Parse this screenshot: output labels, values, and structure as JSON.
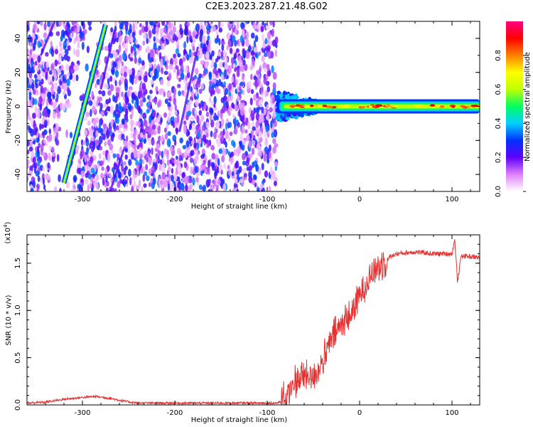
{
  "title": "C2E3.2023.287.21.48.G02",
  "chart_data": [
    {
      "type": "heatmap",
      "xlabel": "Height of straight line (km)",
      "ylabel": "Frequency (Hz)",
      "xlim": [
        -360,
        130
      ],
      "ylim": [
        -50,
        50
      ],
      "xticks": [
        -300,
        -200,
        -100,
        0,
        100
      ],
      "yticks": [
        -40,
        -20,
        0,
        20,
        40
      ],
      "colorbar": {
        "label": "Normalized spectral amplitude",
        "range": [
          0,
          1
        ],
        "ticks": [
          "0.0",
          "0.2",
          "0.4",
          "0.6",
          "0.8"
        ],
        "colors": [
          "#ffffff",
          "#e080ff",
          "#6000ff",
          "#0030ff",
          "#00d0ff",
          "#00ff60",
          "#c0ff00",
          "#ffff00",
          "#ff8000",
          "#ff0000",
          "#ff0080"
        ]
      },
      "features": [
        {
          "name": "noise-region",
          "x_range": [
            -360,
            -90
          ],
          "y_range": [
            -50,
            50
          ]
        },
        {
          "name": "signal-band",
          "x_range": [
            -90,
            130
          ],
          "frequency_hz": 0
        },
        {
          "name": "diagonal-line",
          "x_range": [
            -320,
            -275
          ],
          "y_range": [
            -45,
            48
          ]
        }
      ]
    },
    {
      "type": "line",
      "xlabel": "Height of straight line (km)",
      "ylabel": "SNR (10 * v/v)",
      "multiplier_label": "(x10",
      "multiplier_exp": "4",
      "multiplier_close": ")",
      "xlim": [
        -360,
        130
      ],
      "ylim": [
        0,
        1.8
      ],
      "xticks": [
        -300,
        -200,
        -100,
        0,
        100
      ],
      "yticks": [
        "0.0",
        "0.5",
        "1.0",
        "1.5"
      ],
      "series": [
        {
          "color": "#e83030",
          "x": [
            -360,
            -340,
            -320,
            -300,
            -285,
            -270,
            -255,
            -240,
            -220,
            -200,
            -180,
            -160,
            -140,
            -120,
            -100,
            -90,
            -80,
            -70,
            -60,
            -50,
            -40,
            -30,
            -20,
            -10,
            0,
            10,
            20,
            30,
            40,
            60,
            80,
            100,
            103,
            106,
            110,
            120,
            130
          ],
          "y": [
            0.02,
            0.03,
            0.06,
            0.08,
            0.09,
            0.07,
            0.04,
            0.02,
            0.02,
            0.02,
            0.02,
            0.02,
            0.02,
            0.02,
            0.02,
            0.02,
            0.05,
            0.25,
            0.3,
            0.3,
            0.45,
            0.7,
            0.85,
            0.95,
            1.15,
            1.35,
            1.45,
            1.55,
            1.6,
            1.62,
            1.6,
            1.6,
            1.75,
            1.3,
            1.58,
            1.57,
            1.56
          ]
        }
      ]
    }
  ]
}
